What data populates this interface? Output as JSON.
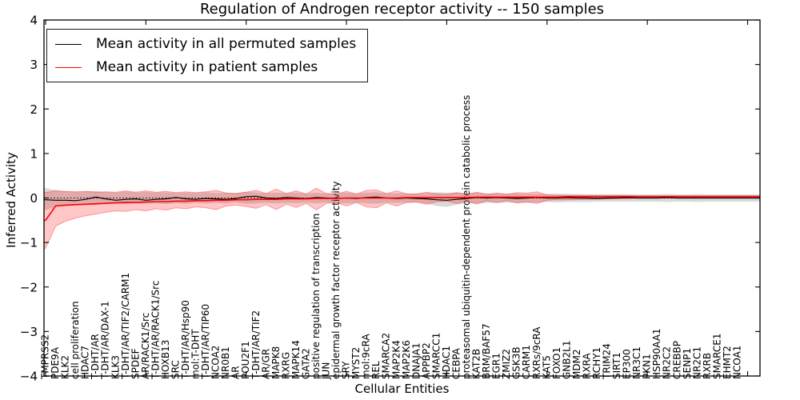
{
  "chart_data": {
    "type": "line",
    "title": "Regulation of Androgen receptor activity -- 150 samples",
    "xlabel": "Cellular Entities",
    "ylabel": "Inferred Activity",
    "ylim": [
      -4,
      4
    ],
    "yticks": [
      -4,
      -3,
      -2,
      -1,
      0,
      1,
      2,
      3,
      4
    ],
    "grid": false,
    "legend_position": "upper left",
    "zero_line": {
      "y": 0,
      "style": "dotted",
      "color": "#000000"
    },
    "x_tick_rotation": 90,
    "categories": [
      "TMPRSS2",
      "PDE9A",
      "KLK2",
      "cell proliferation",
      "HDAC7",
      "T-DHT/AR",
      "T-DHT/AR/DAX-1",
      "KLK3",
      "T-DHT/AR/TIF2/CARM1",
      "SPDEF",
      "AR/RACK1/Src",
      "T-DHT/AR/RACK1/Src",
      "HOXB13",
      "SRC",
      "T-DHT/AR/Hsp90",
      "mol:T-DHT",
      "T-DHT/AR/TIP60",
      "NCOA2",
      "NR0B1",
      "AR",
      "POU2F1",
      "T-DHT/AR/TIF2",
      "AR/GR",
      "MAPK8",
      "RXRG",
      "MAPK14",
      "GATA2",
      "positive regulation of transcription",
      "JUN",
      "epidermal growth factor receptor activity",
      "SRY",
      "MYST2",
      "mol:9cRA",
      "REL",
      "SMARCA2",
      "MAP2K4",
      "MAP2K6",
      "DNAJA1",
      "APPBP2",
      "SMARCC1",
      "HDAC1",
      "CEBPA",
      "proteasomal ubiquitin-dependent protein catabolic process",
      "KAT2B",
      "BRM/BAF57",
      "EGR1",
      "ZMIZ2",
      "GSK3B",
      "CARM1",
      "RXRs/9cRA",
      "KAT5",
      "FOXO1",
      "GNB2L1",
      "MDM2",
      "RXRA",
      "RCHY1",
      "TRIM24",
      "SIRT1",
      "EP300",
      "NR3C1",
      "PKN1",
      "HSP90AA1",
      "NR2C2",
      "CREBBP",
      "SENP1",
      "NR2C1",
      "RXRB",
      "SMARCE1",
      "EHMT2",
      "NCOA1"
    ],
    "series": [
      {
        "name": "Mean activity in all permuted samples",
        "color": "#000000",
        "values": [
          -0.04,
          -0.05,
          -0.05,
          -0.06,
          -0.03,
          0.02,
          -0.02,
          -0.05,
          -0.03,
          -0.02,
          -0.05,
          -0.03,
          -0.02,
          0.01,
          -0.02,
          -0.03,
          -0.01,
          -0.02,
          -0.03,
          -0.01,
          0.03,
          0.04,
          0.0,
          -0.01,
          0.01,
          0.0,
          -0.01,
          0.01,
          0.0,
          -0.01,
          0.0,
          -0.01,
          0.01,
          0.02,
          0.0,
          -0.01,
          0.0,
          -0.01,
          -0.02,
          -0.04,
          -0.05,
          -0.03,
          -0.01,
          0.01,
          0.0,
          0.01,
          0.0,
          -0.01,
          0.0,
          0.01,
          0.0,
          0.0,
          0.01,
          0.0,
          0.0,
          -0.01,
          0.0,
          0.0,
          0.01,
          0.0,
          0.0,
          0.0,
          0.01,
          0.0,
          0.0,
          0.0,
          0.0,
          0.0,
          0.0,
          0.0
        ]
      },
      {
        "name": "Mean activity in patient samples",
        "color": "#ff0000",
        "values": [
          -0.5,
          -0.18,
          -0.16,
          -0.15,
          -0.14,
          -0.13,
          -0.12,
          -0.11,
          -0.1,
          -0.1,
          -0.09,
          -0.08,
          -0.08,
          -0.07,
          -0.07,
          -0.06,
          -0.06,
          -0.05,
          -0.05,
          -0.04,
          -0.04,
          -0.03,
          -0.03,
          -0.03,
          -0.02,
          -0.02,
          -0.02,
          -0.01,
          -0.01,
          -0.01,
          0.0,
          0.0,
          0.0,
          0.0,
          0.0,
          0.0,
          0.01,
          0.01,
          0.01,
          0.01,
          0.01,
          0.01,
          0.01,
          0.02,
          0.02,
          0.02,
          0.02,
          0.02,
          0.02,
          0.02,
          0.02,
          0.02,
          0.03,
          0.03,
          0.03,
          0.03,
          0.03,
          0.03,
          0.03,
          0.03,
          0.03,
          0.03,
          0.03,
          0.03,
          0.03,
          0.03,
          0.03,
          0.03,
          0.03,
          0.03
        ]
      }
    ],
    "bands": [
      {
        "name": "permuted samples std band",
        "color": "rgba(128,128,128,0.30)",
        "edge": "none",
        "lower": [
          -0.27,
          -0.2,
          -0.16,
          -0.14,
          -0.15,
          -0.16,
          -0.13,
          -0.12,
          -0.14,
          -0.12,
          -0.13,
          -0.12,
          -0.14,
          -0.11,
          -0.13,
          -0.11,
          -0.12,
          -0.11,
          -0.12,
          -0.1,
          -0.13,
          -0.12,
          -0.11,
          -0.12,
          -0.11,
          -0.12,
          -0.1,
          -0.12,
          -0.1,
          -0.11,
          -0.12,
          -0.1,
          -0.12,
          -0.13,
          -0.1,
          -0.11,
          -0.1,
          -0.1,
          -0.12,
          -0.18,
          -0.2,
          -0.15,
          -0.12,
          -0.13,
          -0.11,
          -0.11,
          -0.1,
          -0.11,
          -0.1,
          -0.1,
          -0.09,
          -0.1,
          -0.09,
          -0.09,
          -0.09,
          -0.08,
          -0.08,
          -0.08,
          -0.08,
          -0.08,
          -0.08,
          -0.08,
          -0.09,
          -0.08,
          -0.08,
          -0.09,
          -0.08,
          -0.08,
          -0.08,
          -0.08
        ],
        "upper": [
          0.22,
          0.18,
          0.15,
          0.14,
          0.15,
          0.16,
          0.13,
          0.12,
          0.15,
          0.12,
          0.14,
          0.12,
          0.13,
          0.11,
          0.12,
          0.11,
          0.13,
          0.11,
          0.12,
          0.11,
          0.14,
          0.12,
          0.11,
          0.12,
          0.11,
          0.12,
          0.1,
          0.12,
          0.1,
          0.11,
          0.12,
          0.1,
          0.12,
          0.13,
          0.1,
          0.11,
          0.1,
          0.1,
          0.11,
          0.13,
          0.12,
          0.12,
          0.11,
          0.12,
          0.1,
          0.1,
          0.1,
          0.1,
          0.09,
          0.1,
          0.09,
          0.1,
          0.09,
          0.09,
          0.08,
          0.08,
          0.08,
          0.08,
          0.08,
          0.08,
          0.08,
          0.08,
          0.09,
          0.08,
          0.08,
          0.09,
          0.08,
          0.08,
          0.08,
          0.08
        ]
      },
      {
        "name": "patient samples std band",
        "color": "rgba(255,0,0,0.22)",
        "edge": "rgba(255,0,0,0.35)",
        "lower": [
          -1.13,
          -0.63,
          -0.52,
          -0.45,
          -0.4,
          -0.36,
          -0.32,
          -0.29,
          -0.3,
          -0.26,
          -0.29,
          -0.24,
          -0.27,
          -0.22,
          -0.24,
          -0.2,
          -0.22,
          -0.26,
          -0.18,
          -0.16,
          -0.19,
          -0.23,
          -0.15,
          -0.26,
          -0.14,
          -0.21,
          -0.12,
          -0.27,
          -0.12,
          -0.1,
          -0.18,
          -0.1,
          -0.2,
          -0.22,
          -0.11,
          -0.18,
          -0.1,
          -0.09,
          -0.14,
          -0.08,
          -0.07,
          -0.12,
          -0.07,
          -0.13,
          -0.06,
          -0.1,
          -0.06,
          -0.11,
          -0.09,
          -0.12,
          -0.05,
          -0.04,
          -0.04,
          -0.03,
          -0.03,
          -0.02,
          -0.02,
          -0.01,
          -0.01,
          0.0,
          0.0,
          0.0,
          0.0,
          0.0,
          0.0,
          0.0,
          0.0,
          0.0,
          0.0,
          0.0
        ],
        "upper": [
          0.12,
          0.16,
          0.15,
          0.14,
          0.15,
          0.13,
          0.14,
          0.13,
          0.16,
          0.13,
          0.16,
          0.13,
          0.15,
          0.12,
          0.14,
          0.12,
          0.14,
          0.17,
          0.11,
          0.1,
          0.13,
          0.17,
          0.1,
          0.2,
          0.1,
          0.16,
          0.09,
          0.22,
          0.1,
          0.09,
          0.15,
          0.09,
          0.17,
          0.18,
          0.1,
          0.16,
          0.09,
          0.09,
          0.13,
          0.09,
          0.08,
          0.12,
          0.08,
          0.13,
          0.08,
          0.11,
          0.08,
          0.12,
          0.11,
          0.14,
          0.07,
          0.06,
          0.06,
          0.06,
          0.06,
          0.06,
          0.06,
          0.06,
          0.06,
          0.05,
          0.05,
          0.05,
          0.05,
          0.05,
          0.05,
          0.05,
          0.05,
          0.05,
          0.05,
          0.05
        ]
      }
    ]
  }
}
